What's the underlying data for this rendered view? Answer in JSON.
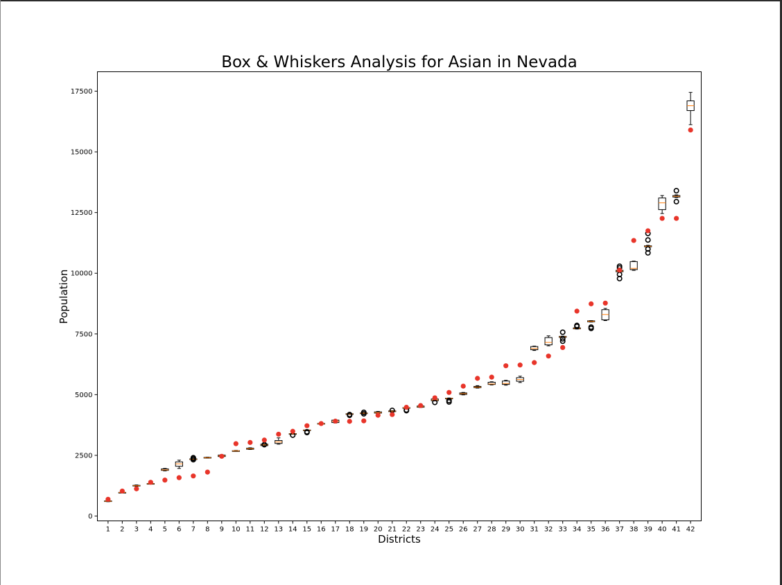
{
  "chart_data": {
    "type": "box",
    "title": "Box & Whiskers Analysis for Asian in Nevada",
    "xlabel": "Districts",
    "ylabel": "Population",
    "ylim": [
      -200,
      18300
    ],
    "yticks": [
      0,
      2500,
      5000,
      7500,
      10000,
      12500,
      15000,
      17500
    ],
    "categories": [
      "1",
      "2",
      "3",
      "4",
      "5",
      "6",
      "7",
      "8",
      "9",
      "10",
      "11",
      "12",
      "13",
      "14",
      "15",
      "16",
      "17",
      "18",
      "19",
      "20",
      "21",
      "22",
      "23",
      "24",
      "25",
      "26",
      "27",
      "28",
      "29",
      "30",
      "31",
      "32",
      "33",
      "34",
      "35",
      "36",
      "37",
      "38",
      "39",
      "40",
      "41",
      "42"
    ],
    "box_color": "#000000",
    "median_color": "#ff7f0e",
    "point_color": "#e8352a",
    "boxes": [
      {
        "whislo": 590,
        "q1": 600,
        "med": 610,
        "q3": 625,
        "whishi": 640,
        "fliers": []
      },
      {
        "whislo": 955,
        "q1": 960,
        "med": 968,
        "q3": 975,
        "whishi": 985,
        "fliers": []
      },
      {
        "whislo": 1225,
        "q1": 1235,
        "med": 1250,
        "q3": 1265,
        "whishi": 1280,
        "fliers": []
      },
      {
        "whislo": 1315,
        "q1": 1320,
        "med": 1330,
        "q3": 1340,
        "whishi": 1350,
        "fliers": []
      },
      {
        "whislo": 1860,
        "q1": 1880,
        "med": 1900,
        "q3": 1940,
        "whishi": 1960,
        "fliers": []
      },
      {
        "whislo": 1960,
        "q1": 2050,
        "med": 2150,
        "q3": 2230,
        "whishi": 2300,
        "fliers": []
      },
      {
        "whislo": 2320,
        "q1": 2330,
        "med": 2340,
        "q3": 2355,
        "whishi": 2365,
        "fliers": [
          2320,
          2370,
          2400
        ]
      },
      {
        "whislo": 2385,
        "q1": 2390,
        "med": 2400,
        "q3": 2415,
        "whishi": 2425,
        "fliers": []
      },
      {
        "whislo": 2430,
        "q1": 2450,
        "med": 2480,
        "q3": 2510,
        "whishi": 2530,
        "fliers": []
      },
      {
        "whislo": 2665,
        "q1": 2670,
        "med": 2680,
        "q3": 2690,
        "whishi": 2700,
        "fliers": []
      },
      {
        "whislo": 2740,
        "q1": 2750,
        "med": 2770,
        "q3": 2795,
        "whishi": 2810,
        "fliers": []
      },
      {
        "whislo": 2880,
        "q1": 2900,
        "med": 2930,
        "q3": 2960,
        "whishi": 2980,
        "fliers": [
          2940
        ]
      },
      {
        "whislo": 2960,
        "q1": 2990,
        "med": 3050,
        "q3": 3110,
        "whishi": 3220,
        "fliers": []
      },
      {
        "whislo": 3370,
        "q1": 3375,
        "med": 3385,
        "q3": 3395,
        "whishi": 3400,
        "fliers": [
          3330
        ]
      },
      {
        "whislo": 3520,
        "q1": 3525,
        "med": 3535,
        "q3": 3545,
        "whishi": 3550,
        "fliers": [
          3440,
          3470
        ]
      },
      {
        "whislo": 3780,
        "q1": 3790,
        "med": 3800,
        "q3": 3815,
        "whishi": 3840,
        "fliers": []
      },
      {
        "whislo": 3830,
        "q1": 3850,
        "med": 3900,
        "q3": 3950,
        "whishi": 3960,
        "fliers": []
      },
      {
        "whislo": 4190,
        "q1": 4195,
        "med": 4205,
        "q3": 4215,
        "whishi": 4220,
        "fliers": [
          4150,
          4180
        ]
      },
      {
        "whislo": 4220,
        "q1": 4225,
        "med": 4235,
        "q3": 4245,
        "whishi": 4250,
        "fliers": [
          4210,
          4270
        ]
      },
      {
        "whislo": 4230,
        "q1": 4240,
        "med": 4260,
        "q3": 4290,
        "whishi": 4310,
        "fliers": []
      },
      {
        "whislo": 4300,
        "q1": 4310,
        "med": 4320,
        "q3": 4330,
        "whishi": 4340,
        "fliers": [
          4350
        ]
      },
      {
        "whislo": 4440,
        "q1": 4445,
        "med": 4455,
        "q3": 4465,
        "whishi": 4470,
        "fliers": [
          4340,
          4370
        ]
      },
      {
        "whislo": 4470,
        "q1": 4480,
        "med": 4500,
        "q3": 4530,
        "whishi": 4550,
        "fliers": []
      },
      {
        "whislo": 4740,
        "q1": 4750,
        "med": 4780,
        "q3": 4820,
        "whishi": 4840,
        "fliers": [
          4680
        ]
      },
      {
        "whislo": 4830,
        "q1": 4835,
        "med": 4845,
        "q3": 4855,
        "whishi": 4860,
        "fliers": [
          4700,
          4760
        ]
      },
      {
        "whislo": 4990,
        "q1": 5010,
        "med": 5040,
        "q3": 5070,
        "whishi": 5090,
        "fliers": []
      },
      {
        "whislo": 5270,
        "q1": 5290,
        "med": 5310,
        "q3": 5340,
        "whishi": 5370,
        "fliers": []
      },
      {
        "whislo": 5400,
        "q1": 5420,
        "med": 5440,
        "q3": 5510,
        "whishi": 5530,
        "fliers": []
      },
      {
        "whislo": 5390,
        "q1": 5420,
        "med": 5460,
        "q3": 5560,
        "whishi": 5590,
        "fliers": []
      },
      {
        "whislo": 5500,
        "q1": 5550,
        "med": 5620,
        "q3": 5700,
        "whishi": 5760,
        "fliers": []
      },
      {
        "whislo": 6820,
        "q1": 6850,
        "med": 6900,
        "q3": 6980,
        "whishi": 7000,
        "fliers": []
      },
      {
        "whislo": 7010,
        "q1": 7050,
        "med": 7150,
        "q3": 7350,
        "whishi": 7420,
        "fliers": []
      },
      {
        "whislo": 7350,
        "q1": 7360,
        "med": 7380,
        "q3": 7400,
        "whishi": 7410,
        "fliers": [
          7200,
          7300,
          7570
        ]
      },
      {
        "whislo": 7700,
        "q1": 7710,
        "med": 7730,
        "q3": 7750,
        "whishi": 7760,
        "fliers": [
          7810,
          7850
        ]
      },
      {
        "whislo": 7990,
        "q1": 8000,
        "med": 8020,
        "q3": 8040,
        "whishi": 8050,
        "fliers": [
          7730,
          7780
        ]
      },
      {
        "whislo": 8050,
        "q1": 8080,
        "med": 8300,
        "q3": 8500,
        "whishi": 8550,
        "fliers": []
      },
      {
        "whislo": 10040,
        "q1": 10060,
        "med": 10090,
        "q3": 10120,
        "whishi": 10140,
        "fliers": [
          9780,
          9950,
          10220,
          10290
        ]
      },
      {
        "whislo": 10120,
        "q1": 10150,
        "med": 10200,
        "q3": 10480,
        "whishi": 10500,
        "fliers": []
      },
      {
        "whislo": 11080,
        "q1": 11090,
        "med": 11110,
        "q3": 11130,
        "whishi": 11150,
        "fliers": [
          10840,
          11000,
          11370,
          11640
        ]
      },
      {
        "whislo": 12460,
        "q1": 12620,
        "med": 12900,
        "q3": 13100,
        "whishi": 13200,
        "fliers": []
      },
      {
        "whislo": 13120,
        "q1": 13140,
        "med": 13170,
        "q3": 13200,
        "whishi": 13230,
        "fliers": [
          12950,
          13400
        ]
      },
      {
        "whislo": 16120,
        "q1": 16700,
        "med": 16900,
        "q3": 17100,
        "whishi": 17450,
        "fliers": []
      }
    ],
    "points": [
      690,
      1030,
      1120,
      1390,
      1480,
      1580,
      1650,
      1810,
      2460,
      2980,
      3030,
      3130,
      3370,
      3490,
      3720,
      3810,
      3910,
      3900,
      3920,
      4150,
      4180,
      4480,
      4550,
      4870,
      5090,
      5350,
      5670,
      5720,
      6190,
      6220,
      6320,
      6590,
      6940,
      8440,
      8740,
      8770,
      10130,
      11350,
      11750,
      12260,
      12260,
      15900
    ]
  }
}
